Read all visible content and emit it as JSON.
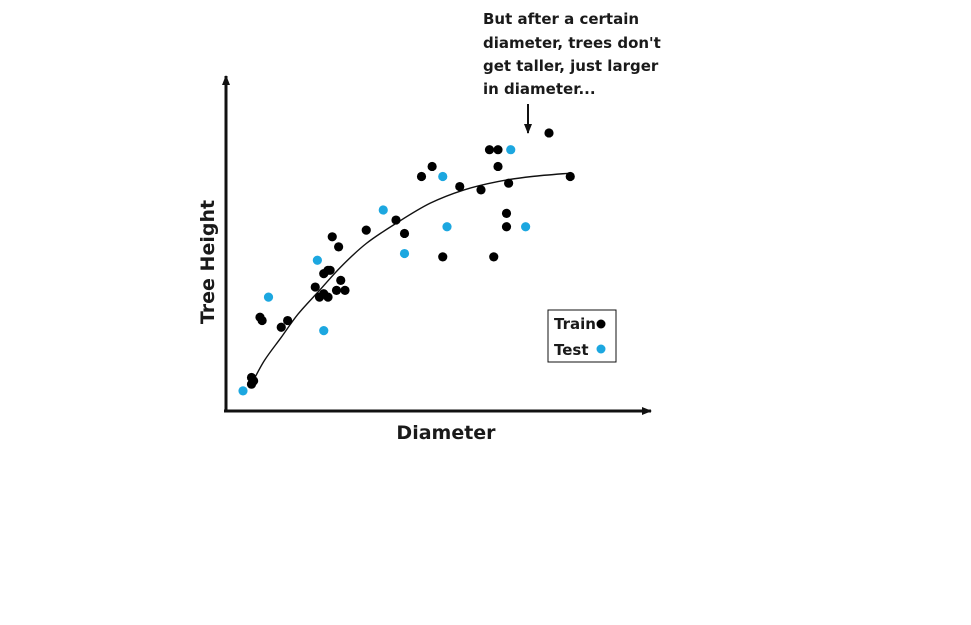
{
  "chart_data": {
    "type": "scatter",
    "title": "",
    "xlabel": "Diameter",
    "ylabel": "Tree Height",
    "xlim": [
      0,
      100
    ],
    "ylim": [
      0,
      100
    ],
    "grid": false,
    "axis_ticks": false,
    "legend_position": "bottom-right",
    "annotation": "But after a certain diameter, trees don't get taller, just larger in diameter...",
    "annotation_lines": [
      "But after a certain",
      "diameter, trees don't",
      "get taller, just larger",
      "in diameter..."
    ],
    "series": [
      {
        "name": "Train",
        "color": "#000000",
        "points": [
          [
            6,
            10
          ],
          [
            6,
            8
          ],
          [
            6.5,
            9
          ],
          [
            8,
            28
          ],
          [
            8.5,
            27
          ],
          [
            13,
            25
          ],
          [
            14.5,
            27
          ],
          [
            21,
            37
          ],
          [
            22,
            34
          ],
          [
            23,
            35
          ],
          [
            23,
            41
          ],
          [
            24,
            42
          ],
          [
            24,
            34
          ],
          [
            24.5,
            42
          ],
          [
            25,
            52
          ],
          [
            26,
            36
          ],
          [
            26.5,
            49
          ],
          [
            27,
            39
          ],
          [
            28,
            36
          ],
          [
            33,
            54
          ],
          [
            40,
            57
          ],
          [
            42,
            53
          ],
          [
            46,
            70
          ],
          [
            48.5,
            73
          ],
          [
            51,
            46
          ],
          [
            55,
            67
          ],
          [
            60,
            66
          ],
          [
            62,
            78
          ],
          [
            63,
            46
          ],
          [
            64,
            73
          ],
          [
            64,
            78
          ],
          [
            66,
            59
          ],
          [
            66,
            55
          ],
          [
            66.5,
            68
          ],
          [
            76,
            83
          ],
          [
            81,
            70
          ]
        ]
      },
      {
        "name": "Test",
        "color": "#1ca7e0",
        "points": [
          [
            4,
            6
          ],
          [
            10,
            34
          ],
          [
            21.5,
            45
          ],
          [
            23,
            24
          ],
          [
            37,
            60
          ],
          [
            42,
            47
          ],
          [
            51,
            70
          ],
          [
            52,
            55
          ],
          [
            67,
            78
          ],
          [
            70.5,
            55
          ]
        ]
      }
    ],
    "fit_curve": [
      [
        6,
        8
      ],
      [
        9,
        15
      ],
      [
        13,
        22
      ],
      [
        17,
        29
      ],
      [
        22,
        36
      ],
      [
        27,
        43
      ],
      [
        33,
        50
      ],
      [
        40,
        56
      ],
      [
        48,
        62
      ],
      [
        56,
        66
      ],
      [
        64,
        68.5
      ],
      [
        72,
        70
      ],
      [
        81,
        71
      ]
    ]
  }
}
